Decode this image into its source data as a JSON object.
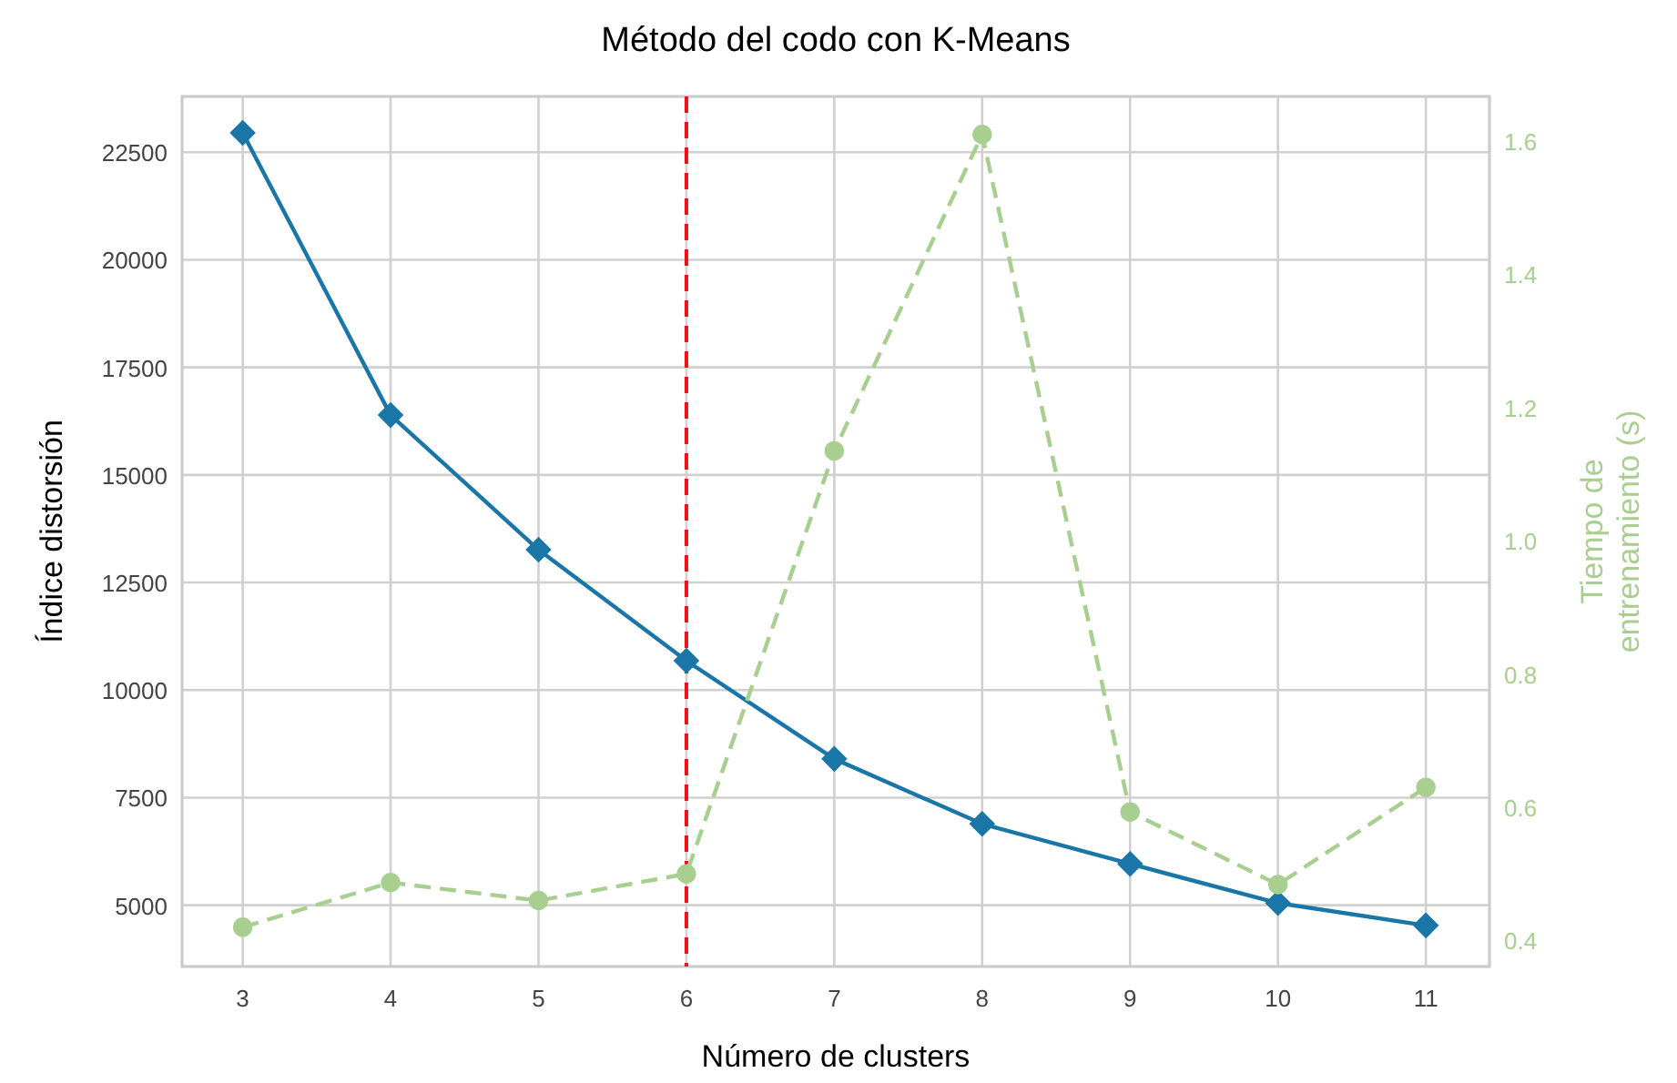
{
  "chart_data": {
    "type": "line",
    "title": "Método del codo con K-Means",
    "xlabel": "Número de clusters",
    "ylabel": "Índice distorsión",
    "y2label": "Tiempo de entrenamiento (s)",
    "x": [
      3,
      4,
      5,
      6,
      7,
      8,
      9,
      10,
      11
    ],
    "series": [
      {
        "color": "#1a76a6",
        "marker": "diamond",
        "line_style": "solid",
        "values": [
          22950,
          16390,
          13260,
          10680,
          8400,
          6890,
          5960,
          5050,
          4530
        ]
      },
      {
        "color": "#a8cf90",
        "marker": "circle",
        "line_style": "dashed",
        "axis": "y2",
        "values": [
          0.42,
          0.487,
          0.46,
          0.5,
          1.135,
          1.61,
          0.593,
          0.484,
          0.63
        ]
      }
    ],
    "xlim": [
      2.59,
      11.43
    ],
    "xticks": [
      3,
      4,
      5,
      6,
      7,
      8,
      9,
      10,
      11
    ],
    "ylim": [
      3575,
      23795
    ],
    "yticks": [
      5000,
      7500,
      10000,
      12500,
      15000,
      17500,
      20000,
      22500
    ],
    "y2lim": [
      0.361,
      1.667
    ],
    "y2ticks": [
      0.4,
      0.6,
      0.8,
      {
        "value": 1,
        "label": "1.0"
      },
      1.2,
      1.4,
      1.6
    ],
    "ref_lines": [
      {
        "axis": "x",
        "value": 6,
        "color": "#ee1111",
        "line_style": "dashed"
      }
    ],
    "grid": true
  }
}
